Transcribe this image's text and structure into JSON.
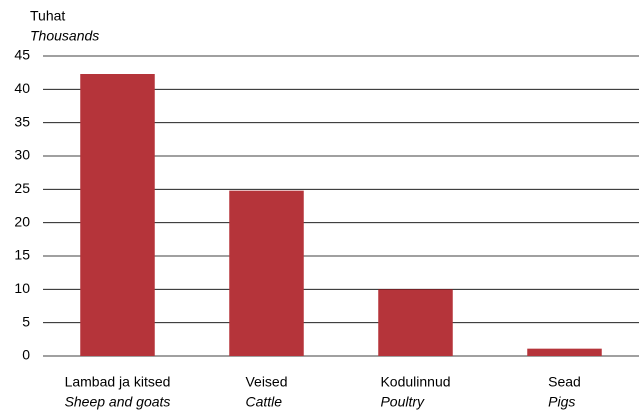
{
  "chart_data": {
    "type": "bar",
    "y_label": "Tuhat",
    "y_label_en": "Thousands",
    "categories": [
      "Lambad ja kitsed",
      "Veised",
      "Kodulinnud",
      "Sead"
    ],
    "categories_en": [
      "Sheep and goats",
      "Cattle",
      "Poultry",
      "Pigs"
    ],
    "values": [
      42.3,
      24.8,
      10,
      1.1
    ],
    "color": "#b5343a",
    "ylim": [
      0,
      45
    ],
    "yticks": [
      0,
      5,
      10,
      15,
      20,
      25,
      30,
      35,
      40,
      45
    ],
    "grid": true
  }
}
